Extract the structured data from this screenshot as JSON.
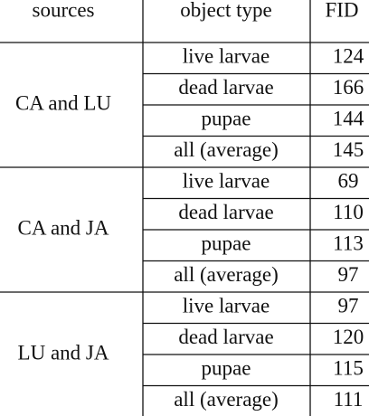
{
  "table": {
    "header": [
      "sources",
      "object type",
      "FID"
    ],
    "groups": [
      {
        "source": "CA and LU",
        "rows": [
          [
            "live larvae",
            124
          ],
          [
            "dead larvae",
            166
          ],
          [
            "pupae",
            144
          ],
          [
            "all (average)",
            145
          ]
        ]
      },
      {
        "source": "CA and JA",
        "rows": [
          [
            "live larvae",
            69
          ],
          [
            "dead larvae",
            110
          ],
          [
            "pupae",
            113
          ],
          [
            "all (average)",
            97
          ]
        ]
      },
      {
        "source": "LU and JA",
        "rows": [
          [
            "live larvae",
            97
          ],
          [
            "dead larvae",
            120
          ],
          [
            "pupae",
            115
          ],
          [
            "all (average)",
            111
          ]
        ]
      }
    ]
  }
}
